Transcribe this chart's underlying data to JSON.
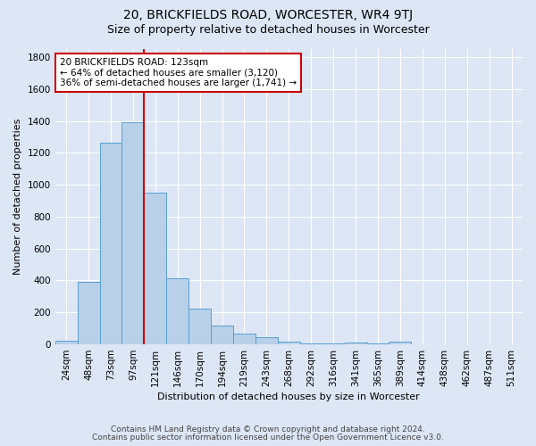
{
  "title": "20, BRICKFIELDS ROAD, WORCESTER, WR4 9TJ",
  "subtitle": "Size of property relative to detached houses in Worcester",
  "xlabel": "Distribution of detached houses by size in Worcester",
  "ylabel": "Number of detached properties",
  "footnote1": "Contains HM Land Registry data © Crown copyright and database right 2024.",
  "footnote2": "Contains public sector information licensed under the Open Government Licence v3.0.",
  "bar_labels": [
    "24sqm",
    "48sqm",
    "73sqm",
    "97sqm",
    "121sqm",
    "146sqm",
    "170sqm",
    "194sqm",
    "219sqm",
    "243sqm",
    "268sqm",
    "292sqm",
    "316sqm",
    "341sqm",
    "365sqm",
    "389sqm",
    "414sqm",
    "438sqm",
    "462sqm",
    "487sqm",
    "511sqm"
  ],
  "bar_values": [
    25,
    390,
    1265,
    1390,
    950,
    415,
    225,
    115,
    70,
    45,
    15,
    8,
    8,
    12,
    8,
    18,
    0,
    0,
    0,
    0,
    0
  ],
  "bar_color": "#b8d0e8",
  "bar_edge_color": "#5a9fd4",
  "background_color": "#dce6f5",
  "grid_color": "#ffffff",
  "vline_color": "#cc0000",
  "vline_x_index": 3.5,
  "annotation_text": "20 BRICKFIELDS ROAD: 123sqm\n← 64% of detached houses are smaller (3,120)\n36% of semi-detached houses are larger (1,741) →",
  "annotation_box_color": "#ffffff",
  "annotation_box_edge": "#cc0000",
  "ylim": [
    0,
    1850
  ],
  "yticks": [
    0,
    200,
    400,
    600,
    800,
    1000,
    1200,
    1400,
    1600,
    1800
  ],
  "title_fontsize": 10,
  "subtitle_fontsize": 9,
  "axis_label_fontsize": 8,
  "tick_fontsize": 7.5,
  "footnote_fontsize": 6.5
}
